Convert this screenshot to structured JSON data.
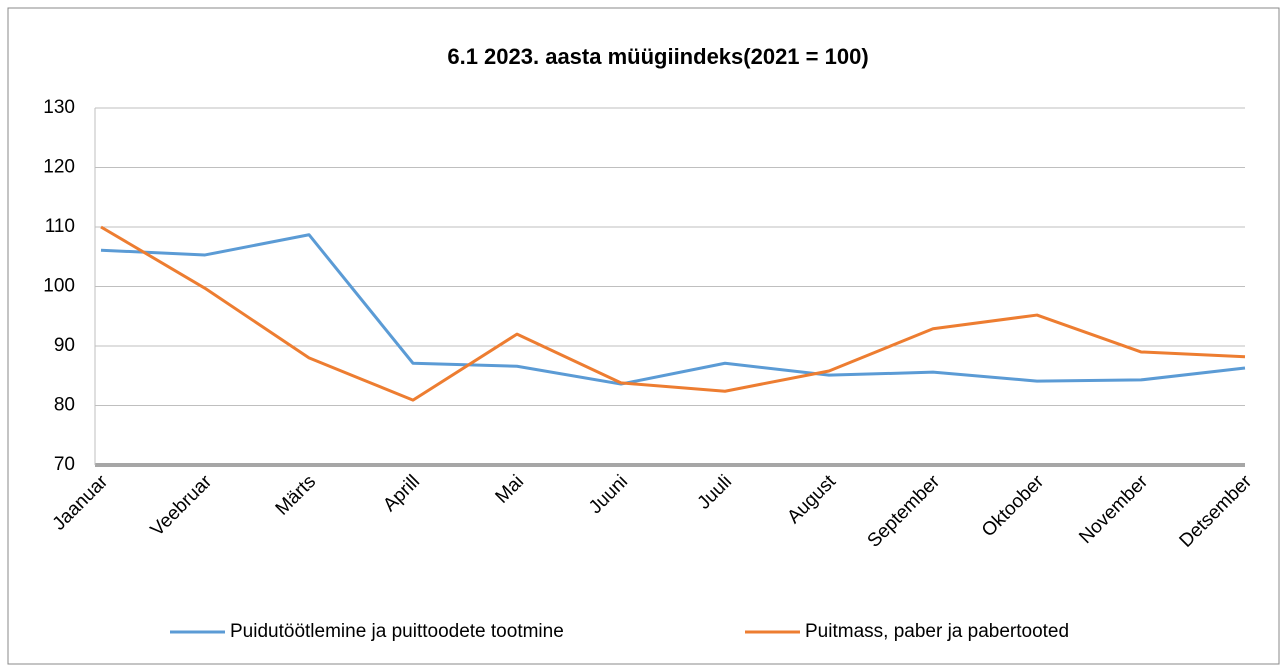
{
  "chart_data": {
    "type": "line",
    "title": "6.1 2023. aasta müügiindeks(2021 = 100)",
    "categories": [
      "Jaanuar",
      "Veebruar",
      "Märts",
      "Aprill",
      "Mai",
      "Juuni",
      "Juuli",
      "August",
      "September",
      "Oktoober",
      "November",
      "Detsember"
    ],
    "series": [
      {
        "name": "Puidutöötlemine ja puittoodete tootmine",
        "color": "#5b9bd5",
        "values": [
          106.1,
          105.3,
          108.7,
          87.1,
          86.6,
          83.6,
          87.1,
          85.1,
          85.6,
          84.1,
          84.3,
          86.3
        ]
      },
      {
        "name": "Puitmass, paber ja pabertooted",
        "color": "#ed7d31",
        "values": [
          110,
          99.7,
          88,
          80.9,
          92,
          83.8,
          82.4,
          85.8,
          92.9,
          95.2,
          89,
          88.2
        ]
      }
    ],
    "ylim": [
      70,
      130
    ],
    "yticks": [
      70,
      80,
      90,
      100,
      110,
      120,
      130
    ],
    "grid": true,
    "legend": "bottom"
  }
}
